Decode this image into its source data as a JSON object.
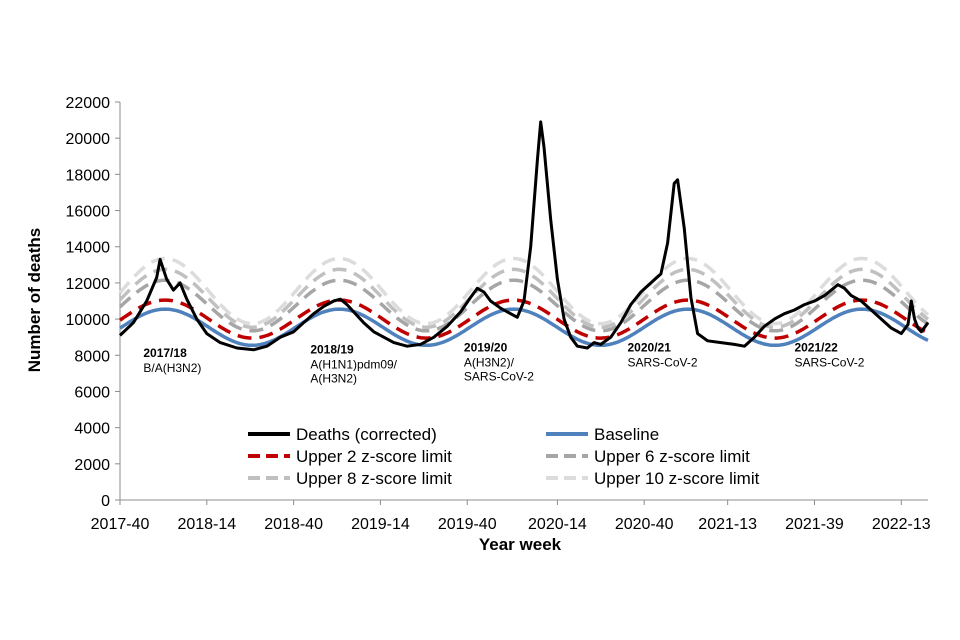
{
  "chart_data": {
    "type": "line",
    "xlabel": "Year week",
    "ylabel": "Number of deaths",
    "ylim": [
      0,
      22000
    ],
    "y_ticks": [
      0,
      2000,
      4000,
      6000,
      8000,
      10000,
      12000,
      14000,
      16000,
      18000,
      20000,
      22000
    ],
    "x_range_weeks": [
      0,
      242
    ],
    "x_ticks": [
      {
        "week": 0,
        "label": "2017-40"
      },
      {
        "week": 26,
        "label": "2018-14"
      },
      {
        "week": 52,
        "label": "2018-40"
      },
      {
        "week": 78,
        "label": "2019-14"
      },
      {
        "week": 104,
        "label": "2019-40"
      },
      {
        "week": 131,
        "label": "2020-14"
      },
      {
        "week": 157,
        "label": "2020-40"
      },
      {
        "week": 182,
        "label": "2021-13"
      },
      {
        "week": 208,
        "label": "2021-39"
      },
      {
        "week": 234,
        "label": "2022-13"
      }
    ],
    "grid": false,
    "legend_position": "bottom-inside",
    "series": [
      {
        "name": "Deaths (corrected)",
        "color": "#000000",
        "style": "solid",
        "points": [
          [
            0,
            9100
          ],
          [
            4,
            9800
          ],
          [
            8,
            11000
          ],
          [
            11,
            12300
          ],
          [
            12,
            13300
          ],
          [
            14,
            12200
          ],
          [
            16,
            11600
          ],
          [
            18,
            12000
          ],
          [
            20,
            11100
          ],
          [
            23,
            10000
          ],
          [
            26,
            9200
          ],
          [
            30,
            8700
          ],
          [
            35,
            8400
          ],
          [
            40,
            8300
          ],
          [
            44,
            8500
          ],
          [
            48,
            9000
          ],
          [
            52,
            9300
          ],
          [
            55,
            9800
          ],
          [
            58,
            10300
          ],
          [
            61,
            10700
          ],
          [
            64,
            11000
          ],
          [
            66,
            11100
          ],
          [
            68,
            10800
          ],
          [
            70,
            10400
          ],
          [
            73,
            9800
          ],
          [
            76,
            9300
          ],
          [
            79,
            9000
          ],
          [
            82,
            8700
          ],
          [
            86,
            8500
          ],
          [
            90,
            8600
          ],
          [
            94,
            9000
          ],
          [
            98,
            9600
          ],
          [
            102,
            10400
          ],
          [
            105,
            11200
          ],
          [
            107,
            11700
          ],
          [
            109,
            11500
          ],
          [
            111,
            11000
          ],
          [
            114,
            10600
          ],
          [
            117,
            10300
          ],
          [
            119,
            10100
          ],
          [
            121,
            11000
          ],
          [
            123,
            14000
          ],
          [
            125,
            18800
          ],
          [
            126,
            20900
          ],
          [
            127,
            19500
          ],
          [
            129,
            15500
          ],
          [
            131,
            12200
          ],
          [
            133,
            10000
          ],
          [
            135,
            9000
          ],
          [
            137,
            8500
          ],
          [
            140,
            8400
          ],
          [
            142,
            8700
          ],
          [
            144,
            8600
          ],
          [
            147,
            9000
          ],
          [
            150,
            9800
          ],
          [
            153,
            10800
          ],
          [
            156,
            11500
          ],
          [
            159,
            12000
          ],
          [
            162,
            12500
          ],
          [
            164,
            14200
          ],
          [
            166,
            17500
          ],
          [
            167,
            17700
          ],
          [
            169,
            15000
          ],
          [
            171,
            11200
          ],
          [
            173,
            9200
          ],
          [
            176,
            8800
          ],
          [
            180,
            8700
          ],
          [
            184,
            8600
          ],
          [
            187,
            8500
          ],
          [
            190,
            9000
          ],
          [
            193,
            9600
          ],
          [
            196,
            10000
          ],
          [
            199,
            10300
          ],
          [
            202,
            10500
          ],
          [
            205,
            10800
          ],
          [
            208,
            11000
          ],
          [
            211,
            11300
          ],
          [
            213,
            11600
          ],
          [
            215,
            11900
          ],
          [
            217,
            11700
          ],
          [
            219,
            11300
          ],
          [
            222,
            11000
          ],
          [
            225,
            10500
          ],
          [
            228,
            10000
          ],
          [
            231,
            9500
          ],
          [
            234,
            9200
          ],
          [
            236,
            9700
          ],
          [
            237,
            11000
          ],
          [
            238,
            10000
          ],
          [
            239,
            9500
          ],
          [
            240,
            9300
          ],
          [
            242,
            9800
          ]
        ]
      },
      {
        "name": "Baseline",
        "color": "#4F81BD",
        "style": "solid",
        "formula": {
          "mean": 9550,
          "amplitude": 1000,
          "peak_week": 13.5,
          "period": 52.18
        }
      },
      {
        "name": "Upper 2 z-score limit",
        "color": "#C00000",
        "style": "dashed",
        "formula": {
          "mean": 10000,
          "amplitude": 1050,
          "peak_week": 13.5,
          "period": 52.18
        }
      },
      {
        "name": "Upper 6 z-score limit",
        "color": "#A6A6A6",
        "style": "dashed",
        "formula": {
          "mean": 10750,
          "amplitude": 1400,
          "peak_week": 13.5,
          "period": 52.18
        }
      },
      {
        "name": "Upper 8 z-score limit",
        "color": "#C0C0C0",
        "style": "dashed",
        "formula": {
          "mean": 11150,
          "amplitude": 1600,
          "peak_week": 13.5,
          "period": 52.18
        }
      },
      {
        "name": "Upper 10 z-score limit",
        "color": "#DCDCDC",
        "style": "dashed",
        "formula": {
          "mean": 11550,
          "amplitude": 1800,
          "peak_week": 13.5,
          "period": 52.18
        }
      }
    ],
    "annotations": [
      {
        "season": "2017/18",
        "strain": [
          "B/A(H3N2)"
        ],
        "week": 7,
        "y": 7900
      },
      {
        "season": "2018/19",
        "strain": [
          "A(H1N1)pdm09/",
          "A(H3N2)"
        ],
        "week": 57,
        "y": 8100
      },
      {
        "season": "2019/20",
        "strain": [
          "A(H3N2)/",
          "SARS-CoV-2"
        ],
        "week": 103,
        "y": 8200
      },
      {
        "season": "2020/21",
        "strain": [
          "SARS-CoV-2"
        ],
        "week": 152,
        "y": 8200
      },
      {
        "season": "2021/22",
        "strain": [
          "SARS-CoV-2"
        ],
        "week": 202,
        "y": 8200
      }
    ]
  }
}
